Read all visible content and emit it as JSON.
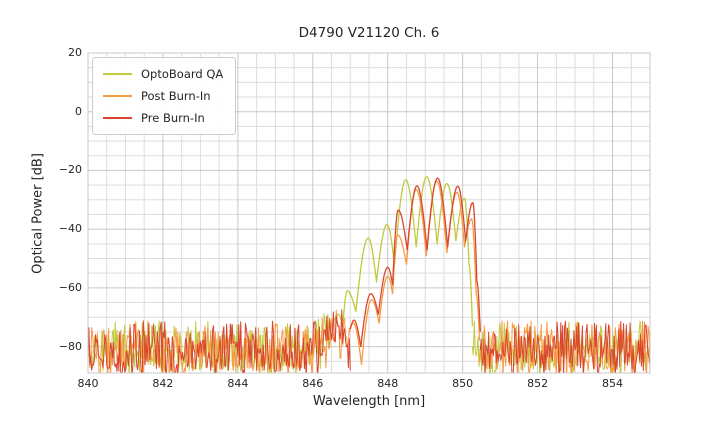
{
  "chart_data": {
    "type": "line",
    "title": "D4790 V21120 Ch. 6",
    "xlabel": "Wavelength [nm]",
    "ylabel": "Optical Power [dB]",
    "xlim": [
      840,
      855
    ],
    "ylim": [
      -89,
      20
    ],
    "xticks": {
      "values": [
        840,
        842,
        844,
        846,
        848,
        850,
        852,
        854
      ],
      "labels": [
        "840",
        "842",
        "844",
        "846",
        "848",
        "850",
        "852",
        "854"
      ]
    },
    "yticks": {
      "values": [
        20,
        0,
        -20,
        -40,
        -60,
        -80
      ],
      "labels": [
        "20",
        "0",
        "−20",
        "−40",
        "−60",
        "−80"
      ]
    },
    "minor_grid": {
      "x_step": 0.5,
      "y_step": 5
    },
    "grid": {
      "major_color": "#c7c7c7",
      "minor_color": "#dddddd",
      "frame_color": "#c9c9c9",
      "background": "#ffffff"
    },
    "legend": {
      "position": "upper left",
      "entries": [
        {
          "label": "OptoBoard QA",
          "color": "#c1c93c"
        },
        {
          "label": "Post Burn-In",
          "color": "#f89a43"
        },
        {
          "label": "Pre Burn-In",
          "color": "#d8462f"
        }
      ]
    },
    "series": [
      {
        "name": "OptoBoard QA",
        "color": "#c1c93c",
        "modal_points": [
          [
            846.55,
            -72
          ],
          [
            846.68,
            -69
          ],
          [
            846.8,
            -73
          ],
          [
            846.92,
            -61
          ],
          [
            847.15,
            -68
          ],
          [
            847.48,
            -43
          ],
          [
            847.7,
            -58
          ],
          [
            847.98,
            -38.5
          ],
          [
            848.18,
            -52
          ],
          [
            848.48,
            -23.2
          ],
          [
            848.76,
            -46
          ],
          [
            849.04,
            -22.2
          ],
          [
            849.32,
            -45
          ],
          [
            849.58,
            -24.5
          ],
          [
            849.82,
            -44
          ],
          [
            850.05,
            -29.5
          ],
          [
            850.17,
            -52
          ],
          [
            850.26,
            -73
          ]
        ],
        "noise": {
          "regions": [
            [
              840,
              846.55
            ],
            [
              850.26,
              855
            ]
          ],
          "top": -73,
          "bottom": -88.5,
          "hump": {
            "center": 846.4,
            "width": 0.4,
            "lift": 3.5
          },
          "seed": 11
        }
      },
      {
        "name": "Post Burn-In",
        "color": "#f89a43",
        "modal_points": [
          [
            846.98,
            -75
          ],
          [
            847.08,
            -72
          ],
          [
            847.3,
            -86
          ],
          [
            847.57,
            -64
          ],
          [
            847.77,
            -72
          ],
          [
            848.0,
            -56
          ],
          [
            848.13,
            -62
          ],
          [
            848.27,
            -42
          ],
          [
            848.5,
            -52
          ],
          [
            848.76,
            -26.5
          ],
          [
            849.03,
            -49
          ],
          [
            849.31,
            -23.7
          ],
          [
            849.58,
            -48
          ],
          [
            849.85,
            -27.5
          ],
          [
            850.05,
            -46
          ],
          [
            850.24,
            -36.5
          ],
          [
            850.36,
            -62
          ],
          [
            850.45,
            -78
          ]
        ],
        "noise": {
          "regions": [
            [
              840,
              846.98
            ],
            [
              850.45,
              855
            ]
          ],
          "top": -73,
          "bottom": -88.5,
          "hump": {
            "center": 846.65,
            "width": 0.45,
            "lift": 4.5
          },
          "seed": 22
        }
      },
      {
        "name": "Pre Burn-In",
        "color": "#d8462f",
        "modal_points": [
          [
            847.0,
            -74
          ],
          [
            847.1,
            -71
          ],
          [
            847.28,
            -80
          ],
          [
            847.55,
            -62
          ],
          [
            847.75,
            -69
          ],
          [
            848.0,
            -53
          ],
          [
            848.13,
            -59
          ],
          [
            848.28,
            -33.5
          ],
          [
            848.52,
            -47
          ],
          [
            848.78,
            -25.3
          ],
          [
            849.05,
            -47
          ],
          [
            849.33,
            -22.6
          ],
          [
            849.6,
            -46
          ],
          [
            849.87,
            -25.4
          ],
          [
            850.08,
            -44
          ],
          [
            850.27,
            -31
          ],
          [
            850.38,
            -58
          ],
          [
            850.47,
            -75
          ]
        ],
        "noise": {
          "regions": [
            [
              840,
              847.0
            ],
            [
              850.47,
              855
            ]
          ],
          "top": -73,
          "bottom": -88.5,
          "hump": {
            "center": 846.65,
            "width": 0.45,
            "lift": 4.5
          },
          "seed": 33
        }
      }
    ]
  }
}
